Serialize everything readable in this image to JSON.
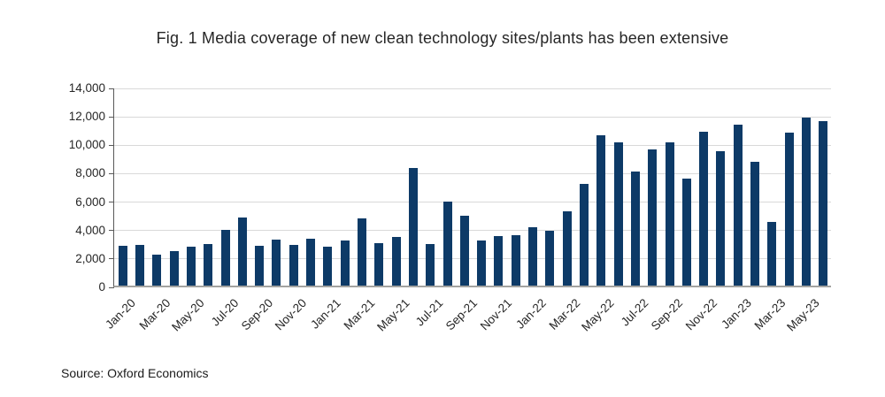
{
  "title": "Fig. 1 Media coverage of new clean technology sites/plants has been extensive",
  "source": "Source: Oxford Economics",
  "colors": {
    "bar": "#0d3a67",
    "gridline": "#d9d9d9",
    "y_axis": "#595959",
    "x_axis": "#a3a3a0",
    "text": "#262626"
  },
  "chart_data": {
    "type": "bar",
    "title": "Fig. 1 Media coverage of new clean technology sites/plants has been extensive",
    "xlabel": "",
    "ylabel": "",
    "ylim": [
      0,
      14000
    ],
    "grid": true,
    "legend": false,
    "y_ticks": [
      0,
      2000,
      4000,
      6000,
      8000,
      10000,
      12000,
      14000
    ],
    "y_tick_labels": [
      "0",
      "2,000",
      "4,000",
      "6,000",
      "8,000",
      "10,000",
      "12,000",
      "14,000"
    ],
    "x_label_every": 2,
    "categories": [
      "Jan-20",
      "Feb-20",
      "Mar-20",
      "Apr-20",
      "May-20",
      "Jun-20",
      "Jul-20",
      "Aug-20",
      "Sep-20",
      "Oct-20",
      "Nov-20",
      "Dec-20",
      "Jan-21",
      "Feb-21",
      "Mar-21",
      "Apr-21",
      "May-21",
      "Jun-21",
      "Jul-21",
      "Aug-21",
      "Sep-21",
      "Oct-21",
      "Nov-21",
      "Dec-21",
      "Jan-22",
      "Feb-22",
      "Mar-22",
      "Apr-22",
      "May-22",
      "Jun-22",
      "Jul-22",
      "Aug-22",
      "Sep-22",
      "Oct-22",
      "Nov-22",
      "Dec-22",
      "Jan-23",
      "Feb-23",
      "Mar-23",
      "Apr-23",
      "May-23",
      "Jun-23"
    ],
    "values": [
      2800,
      2850,
      2200,
      2400,
      2750,
      2900,
      3950,
      4800,
      2800,
      3250,
      2850,
      3300,
      2750,
      3200,
      4700,
      3000,
      3400,
      8250,
      2900,
      5900,
      4900,
      3150,
      3500,
      3550,
      4100,
      3850,
      5250,
      7150,
      10550,
      10050,
      8000,
      9600,
      10100,
      7550,
      10800,
      9450,
      11350,
      8700,
      4500,
      10750,
      11850,
      11550
    ]
  }
}
